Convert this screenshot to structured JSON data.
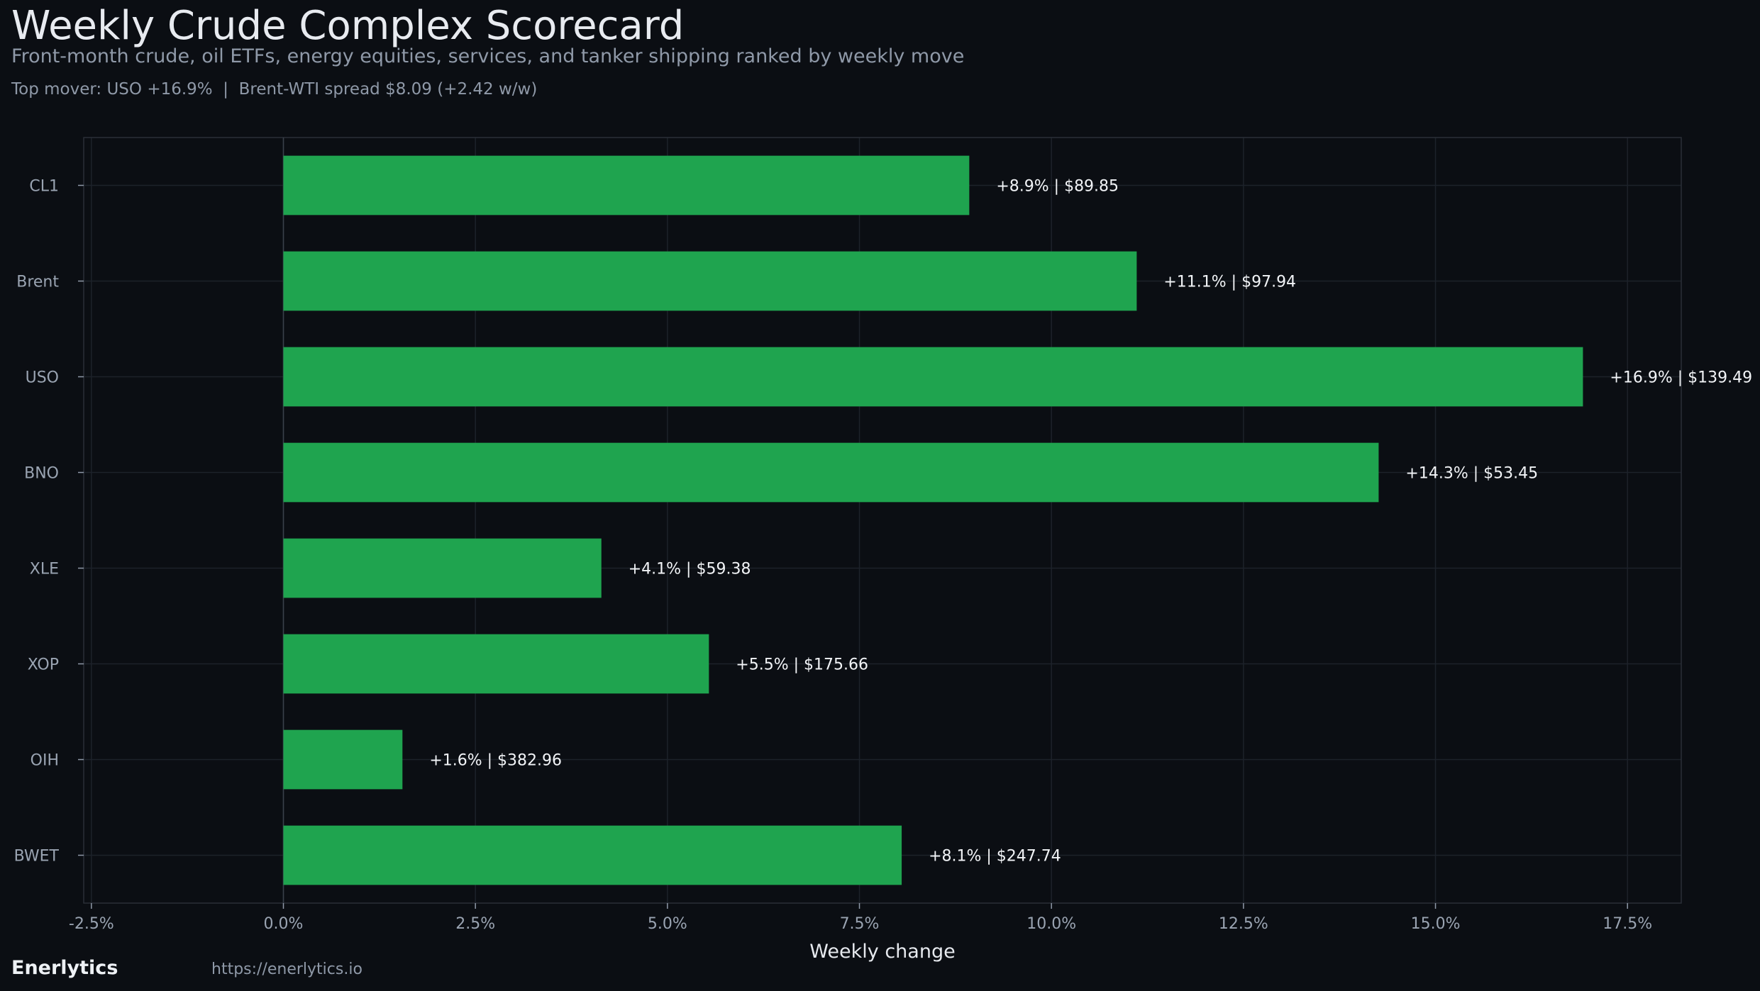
{
  "title": "Weekly Crude Complex Scorecard",
  "subtitle": "Front-month crude, oil ETFs, energy equities, services, and tanker shipping ranked by weekly move",
  "note": "Top mover: USO +16.9%  |  Brent-WTI spread $8.09 (+2.42 w/w)",
  "footer": {
    "brand": "Enerlytics",
    "url": "https://enerlytics.io"
  },
  "colors": {
    "bar": "#1fa44f",
    "background": "#0b0e13"
  },
  "chart_data": {
    "type": "bar",
    "orientation": "horizontal",
    "categories": [
      "CL1",
      "Brent",
      "USO",
      "BNO",
      "XLE",
      "XOP",
      "OIH",
      "BWET"
    ],
    "values": [
      8.93,
      11.11,
      16.92,
      14.26,
      4.14,
      5.54,
      1.55,
      8.05
    ],
    "data_labels": [
      "+8.9% | $89.85",
      "+11.1% | $97.94",
      "+16.9% | $139.49",
      "+14.3% | $53.45",
      "+4.1% | $59.38",
      "+5.5% | $175.66",
      "+1.6% | $382.96",
      "+8.1% | $247.74"
    ],
    "xlabel": "Weekly change",
    "ylabel": "",
    "xlim": [
      -2.6,
      18.2
    ],
    "xticks": [
      -2.5,
      0,
      2.5,
      5,
      7.5,
      10,
      12.5,
      15,
      17.5
    ],
    "xtick_labels": [
      "-2.5%",
      "0.0%",
      "2.5%",
      "5.0%",
      "7.5%",
      "10.0%",
      "12.5%",
      "15.0%",
      "17.5%"
    ],
    "grid": true,
    "legend": "none"
  }
}
